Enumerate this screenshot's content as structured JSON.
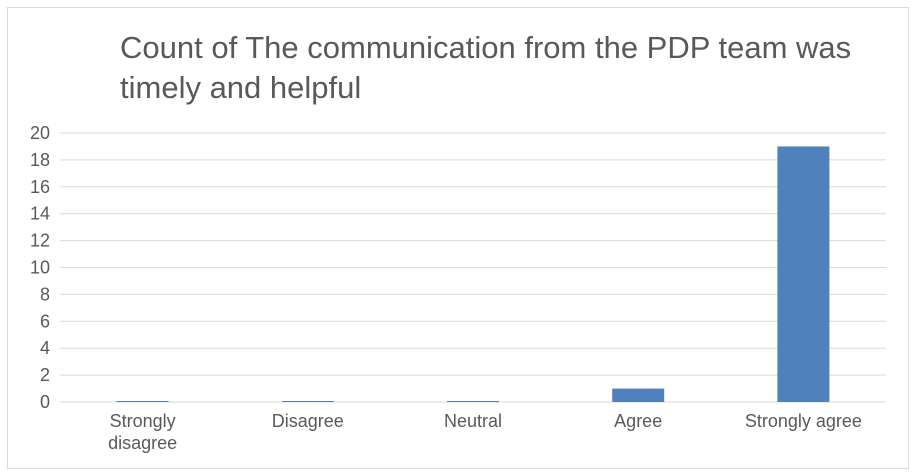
{
  "chart_data": {
    "type": "bar",
    "title": "Count of The communication from the PDP team was timely and helpful",
    "categories": [
      "Strongly disagree",
      "Disagree",
      "Neutral",
      "Agree",
      "Strongly agree"
    ],
    "values": [
      0,
      0,
      0,
      1,
      19
    ],
    "ylim": [
      0,
      20
    ],
    "yticks": [
      0,
      2,
      4,
      6,
      8,
      10,
      12,
      14,
      16,
      18,
      20
    ],
    "grid": true,
    "legend": "none",
    "bar_color": "#4f81bd",
    "grid_color": "#d9d9d9",
    "text_color": "#595959"
  }
}
